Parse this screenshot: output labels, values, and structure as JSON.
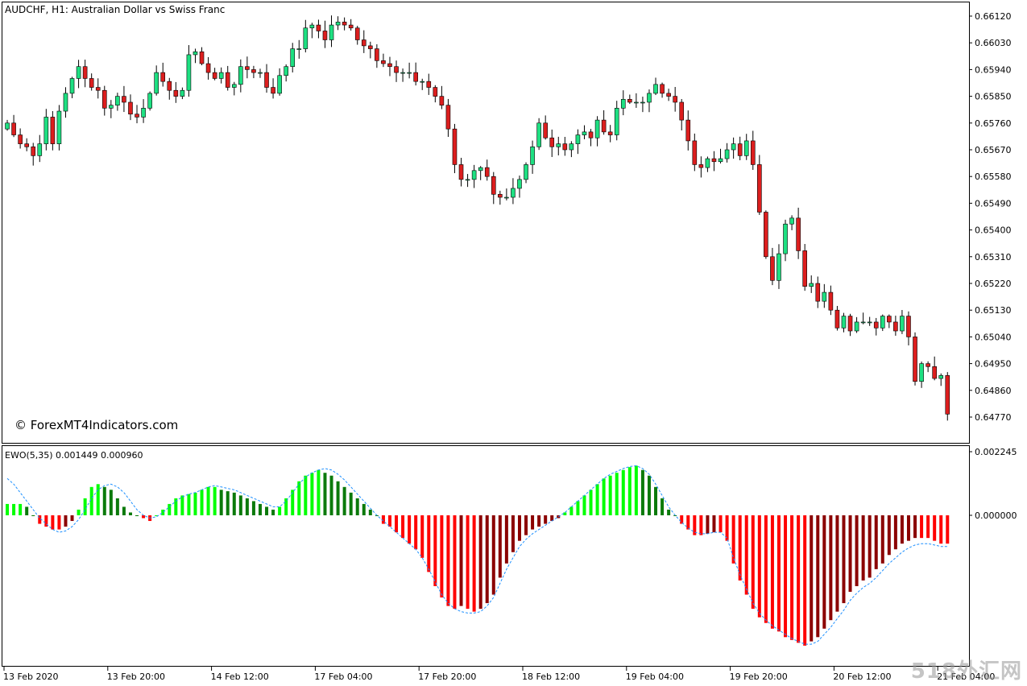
{
  "window": {
    "symbol_title": "AUDCHF, H1:  Australian Dollar vs Swiss Franc",
    "copyright": "© ForexMT4Indicators.com",
    "watermark": "518外汇网"
  },
  "colors": {
    "bull_candle": "#1EE082",
    "bear_candle": "#DC1E1E",
    "histo_up_strong": "#00FF00",
    "histo_up_weak": "#0B7A0B",
    "histo_down_strong": "#FF0000",
    "histo_down_weak": "#8B0000",
    "signal_line": "#1E90FF",
    "frame": "#000000",
    "background": "#FFFFFF"
  },
  "chart_data": [
    {
      "type": "candlestick",
      "title": "AUDCHF, H1:  Australian Dollar vs Swiss Franc",
      "y_ticks": [
        "0.66120",
        "0.66030",
        "0.65940",
        "0.65850",
        "0.65760",
        "0.65670",
        "0.65580",
        "0.65490",
        "0.65400",
        "0.65310",
        "0.65220",
        "0.65130",
        "0.65040",
        "0.64950",
        "0.64860",
        "0.64770"
      ],
      "ylim": [
        0.647,
        0.6616
      ],
      "x_ticks": [
        "13 Feb 2020",
        "13 Feb 20:00",
        "14 Feb 12:00",
        "17 Feb 04:00",
        "17 Feb 20:00",
        "18 Feb 12:00",
        "19 Feb 04:00",
        "19 Feb 20:00",
        "20 Feb 12:00",
        "21 Feb 04:00"
      ],
      "bars_per_x_tick": 16,
      "close": [
        0.6576,
        0.6572,
        0.6569,
        0.6568,
        0.6565,
        0.6569,
        0.6578,
        0.6569,
        0.658,
        0.6586,
        0.6591,
        0.6595,
        0.6591,
        0.6588,
        0.6587,
        0.6581,
        0.6582,
        0.6585,
        0.6583,
        0.6579,
        0.6578,
        0.6581,
        0.6586,
        0.6593,
        0.659,
        0.6587,
        0.6585,
        0.6587,
        0.6599,
        0.66,
        0.6596,
        0.6593,
        0.6591,
        0.6593,
        0.6588,
        0.6589,
        0.6595,
        0.6594,
        0.6593,
        0.6593,
        0.6588,
        0.6586,
        0.6592,
        0.6595,
        0.6601,
        0.6601,
        0.6608,
        0.6609,
        0.6607,
        0.6604,
        0.6609,
        0.661,
        0.6609,
        0.6608,
        0.6604,
        0.6602,
        0.6601,
        0.6597,
        0.6596,
        0.6595,
        0.6593,
        0.6593,
        0.6593,
        0.659,
        0.659,
        0.6588,
        0.6585,
        0.6582,
        0.6574,
        0.6562,
        0.6557,
        0.6557,
        0.656,
        0.6561,
        0.6558,
        0.6552,
        0.6551,
        0.6551,
        0.6554,
        0.6557,
        0.6562,
        0.6568,
        0.6576,
        0.6571,
        0.6568,
        0.6569,
        0.6567,
        0.6569,
        0.6572,
        0.6573,
        0.6571,
        0.6577,
        0.6573,
        0.6572,
        0.6581,
        0.6584,
        0.6583,
        0.6583,
        0.6583,
        0.6586,
        0.6589,
        0.6586,
        0.6585,
        0.6583,
        0.6577,
        0.657,
        0.6562,
        0.6561,
        0.6564,
        0.6563,
        0.6564,
        0.6567,
        0.6569,
        0.6565,
        0.657,
        0.6562,
        0.6546,
        0.6531,
        0.6523,
        0.6532,
        0.6542,
        0.6544,
        0.6533,
        0.6521,
        0.6522,
        0.6516,
        0.6519,
        0.6513,
        0.6507,
        0.6511,
        0.6506,
        0.6509,
        0.6509,
        0.6509,
        0.6507,
        0.6511,
        0.6509,
        0.6506,
        0.6511,
        0.6504,
        0.6489,
        0.6495,
        0.6494,
        0.649,
        0.6491,
        0.6478
      ]
    },
    {
      "type": "bar",
      "title": "EWO(5,35) 0.001449 0.000960",
      "y_ticks": [
        "0.002245",
        "0.000000"
      ],
      "ylim": [
        -0.00452,
        0.002245
      ],
      "series": [
        {
          "values": [
            0.0004,
            0.0004,
            0.0004,
            0.0003,
            0.0,
            -0.0003,
            -0.0004,
            -0.0005,
            -0.0005,
            -0.0004,
            -0.0002,
            0.0002,
            0.0006,
            0.001,
            0.0011,
            0.001,
            0.0009,
            0.0006,
            0.0003,
            0.0001,
            0.0,
            -0.0001,
            -0.0002,
            0.0,
            0.0002,
            0.0004,
            0.0006,
            0.0007,
            0.00075,
            0.0008,
            0.0009,
            0.001,
            0.001,
            0.0009,
            0.00085,
            0.0008,
            0.0007,
            0.0006,
            0.0005,
            0.0004,
            0.0003,
            0.0002,
            0.0003,
            0.0006,
            0.0009,
            0.0012,
            0.0014,
            0.0015,
            0.0016,
            0.0015,
            0.0014,
            0.0012,
            0.001,
            0.0008,
            0.0006,
            0.0004,
            0.0002,
            0.0,
            -0.0003,
            -0.0004,
            -0.0006,
            -0.0008,
            -0.001,
            -0.0012,
            -0.0015,
            -0.002,
            -0.0025,
            -0.0029,
            -0.0032,
            -0.0033,
            -0.0032,
            -0.0033,
            -0.0034,
            -0.0033,
            -0.0031,
            -0.0028,
            -0.0022,
            -0.0017,
            -0.0013,
            -0.0009,
            -0.0007,
            -0.0005,
            -0.0004,
            -0.0003,
            -0.0002,
            -0.0001,
            0.0001,
            0.0003,
            0.0005,
            0.0007,
            0.0009,
            0.0011,
            0.0013,
            0.0014,
            0.0015,
            0.0016,
            0.0017,
            0.00175,
            0.0016,
            0.0014,
            0.001,
            0.0006,
            0.0002,
            0.0,
            -0.0003,
            -0.0005,
            -0.0007,
            -0.0007,
            -0.00065,
            -0.0006,
            -0.0006,
            -0.0009,
            -0.0017,
            -0.0023,
            -0.0028,
            -0.0033,
            -0.0036,
            -0.0038,
            -0.004,
            -0.0041,
            -0.0043,
            -0.0044,
            -0.0045,
            -0.0046,
            -0.00445,
            -0.0043,
            -0.004,
            -0.0037,
            -0.0034,
            -0.0031,
            -0.0027,
            -0.0025,
            -0.0023,
            -0.0022,
            -0.0019,
            -0.0017,
            -0.0014,
            -0.0012,
            -0.001,
            -0.0009,
            -0.0008,
            -0.0008,
            -0.0008,
            -0.0009,
            -0.001,
            -0.001
          ]
        },
        {
          "type": "line",
          "values": [
            0.0013,
            0.0011,
            0.0008,
            0.0005,
            0.0002,
            -0.0001,
            -0.0003,
            -0.0005,
            -0.0006,
            -0.00055,
            -0.0004,
            -0.00015,
            0.0002,
            0.0006,
            0.0009,
            0.00105,
            0.0011,
            0.001,
            0.0008,
            0.0005,
            0.0002,
            0.0,
            -0.0001,
            -5e-05,
            0.0001,
            0.0003,
            0.0005,
            0.00065,
            0.00075,
            0.0008,
            0.0009,
            0.001,
            0.00105,
            0.001,
            0.00095,
            0.0009,
            0.0008,
            0.0007,
            0.0006,
            0.0005,
            0.0004,
            0.0003,
            0.0003,
            0.0005,
            0.0008,
            0.0011,
            0.00135,
            0.0015,
            0.0016,
            0.00165,
            0.0016,
            0.00145,
            0.00125,
            0.001,
            0.00075,
            0.0005,
            0.00025,
            0.0,
            -0.0002,
            -0.0004,
            -0.0006,
            -0.0008,
            -0.001,
            -0.0012,
            -0.0015,
            -0.0019,
            -0.00235,
            -0.0028,
            -0.0031,
            -0.0033,
            -0.0034,
            -0.00345,
            -0.00345,
            -0.0034,
            -0.0032,
            -0.0029,
            -0.0024,
            -0.0019,
            -0.0015,
            -0.0011,
            -0.00085,
            -0.00065,
            -0.0005,
            -0.00035,
            -0.0002,
            -5e-05,
            0.0001,
            0.0003,
            0.0005,
            0.0007,
            0.0009,
            0.0011,
            0.0013,
            0.00145,
            0.00155,
            0.00165,
            0.00172,
            0.00175,
            0.00165,
            0.00145,
            0.0011,
            0.0007,
            0.0003,
            0.0,
            -0.00025,
            -0.00045,
            -0.0006,
            -0.00065,
            -0.00065,
            -0.0006,
            -0.0006,
            -0.0008,
            -0.0015,
            -0.0021,
            -0.0026,
            -0.0031,
            -0.00345,
            -0.0037,
            -0.0039,
            -0.00405,
            -0.0042,
            -0.00435,
            -0.00445,
            -0.00455,
            -0.00455,
            -0.00445,
            -0.0042,
            -0.00395,
            -0.00365,
            -0.00335,
            -0.003,
            -0.00275,
            -0.00255,
            -0.0024,
            -0.0022,
            -0.00195,
            -0.0017,
            -0.0015,
            -0.0013,
            -0.00115,
            -0.00105,
            -0.001,
            -0.001,
            -0.00105,
            -0.0011,
            -0.0011
          ]
        }
      ]
    }
  ]
}
